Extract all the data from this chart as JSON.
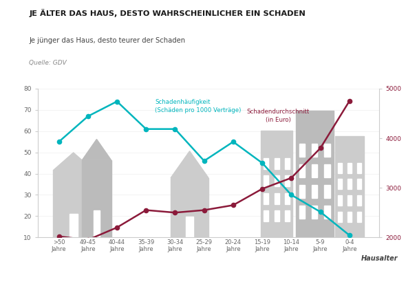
{
  "categories": [
    ">50\nJahre",
    "49-45\nJahre",
    "40-44\nJahre",
    "35-39\nJahre",
    "30-34\nJahre",
    "25-29\nJahre",
    "20-24\nJahre",
    "15-19\nJahre",
    "10-14\nJahre",
    "5-9\nJahre",
    "0-4\nJahre"
  ],
  "haeufigkeit": [
    55,
    67,
    74,
    61,
    61,
    46,
    55,
    45,
    30,
    22,
    11
  ],
  "durchschnitt": [
    2020,
    1950,
    2200,
    2550,
    2500,
    2550,
    2650,
    2980,
    3200,
    3800,
    4750
  ],
  "title": "JE ÄLTER DAS HAUS, DESTO WAHRSCHEINLICHER EIN SCHADEN",
  "subtitle": "Je jünger das Haus, desto teurer der Schaden",
  "source": "Quelle: GDV",
  "xlabel": "Hausalter",
  "ylim_left": [
    10,
    80
  ],
  "ylim_right": [
    2000,
    5000
  ],
  "yticks_left": [
    10,
    20,
    30,
    40,
    50,
    60,
    70,
    80
  ],
  "yticks_right": [
    2000,
    3000,
    4000,
    5000
  ],
  "color_haeufigkeit": "#00B5BD",
  "color_durchschnitt": "#8B1A3A",
  "bg_color": "#FFFFFF",
  "annotation_haeufigkeit": "Schadenhäufigkeit\n(Schäden pro 1000 Verträge)",
  "annotation_durchschnitt": "Schadendurchschnitt\n(in Euro)",
  "building_color": "#CCCCCC"
}
